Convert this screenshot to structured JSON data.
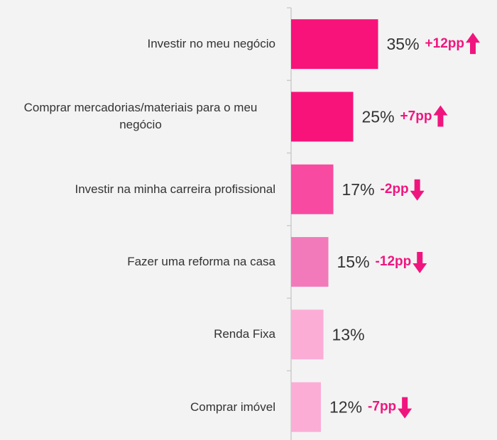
{
  "chart_data": {
    "type": "hbar",
    "categories": [
      "Investir no meu negócio",
      "Comprar mercadorias/materiais para o meu negócio",
      "Investir na minha carreira profissional",
      "Fazer uma reforma na casa",
      "Renda Fixa",
      "Comprar imóvel"
    ],
    "values": [
      35,
      25,
      17,
      15,
      13,
      12
    ],
    "value_labels": [
      "35%",
      "25%",
      "17%",
      "15%",
      "13%",
      "12%"
    ],
    "changes": [
      "+12pp",
      "+7pp",
      "-2pp",
      "-12pp",
      null,
      "-7pp"
    ],
    "colors": [
      "#f7137a",
      "#f7137a",
      "#f84aa0",
      "#f27abb",
      "#fbadd6",
      "#fbadd6"
    ],
    "xlim": [
      0,
      80
    ]
  }
}
